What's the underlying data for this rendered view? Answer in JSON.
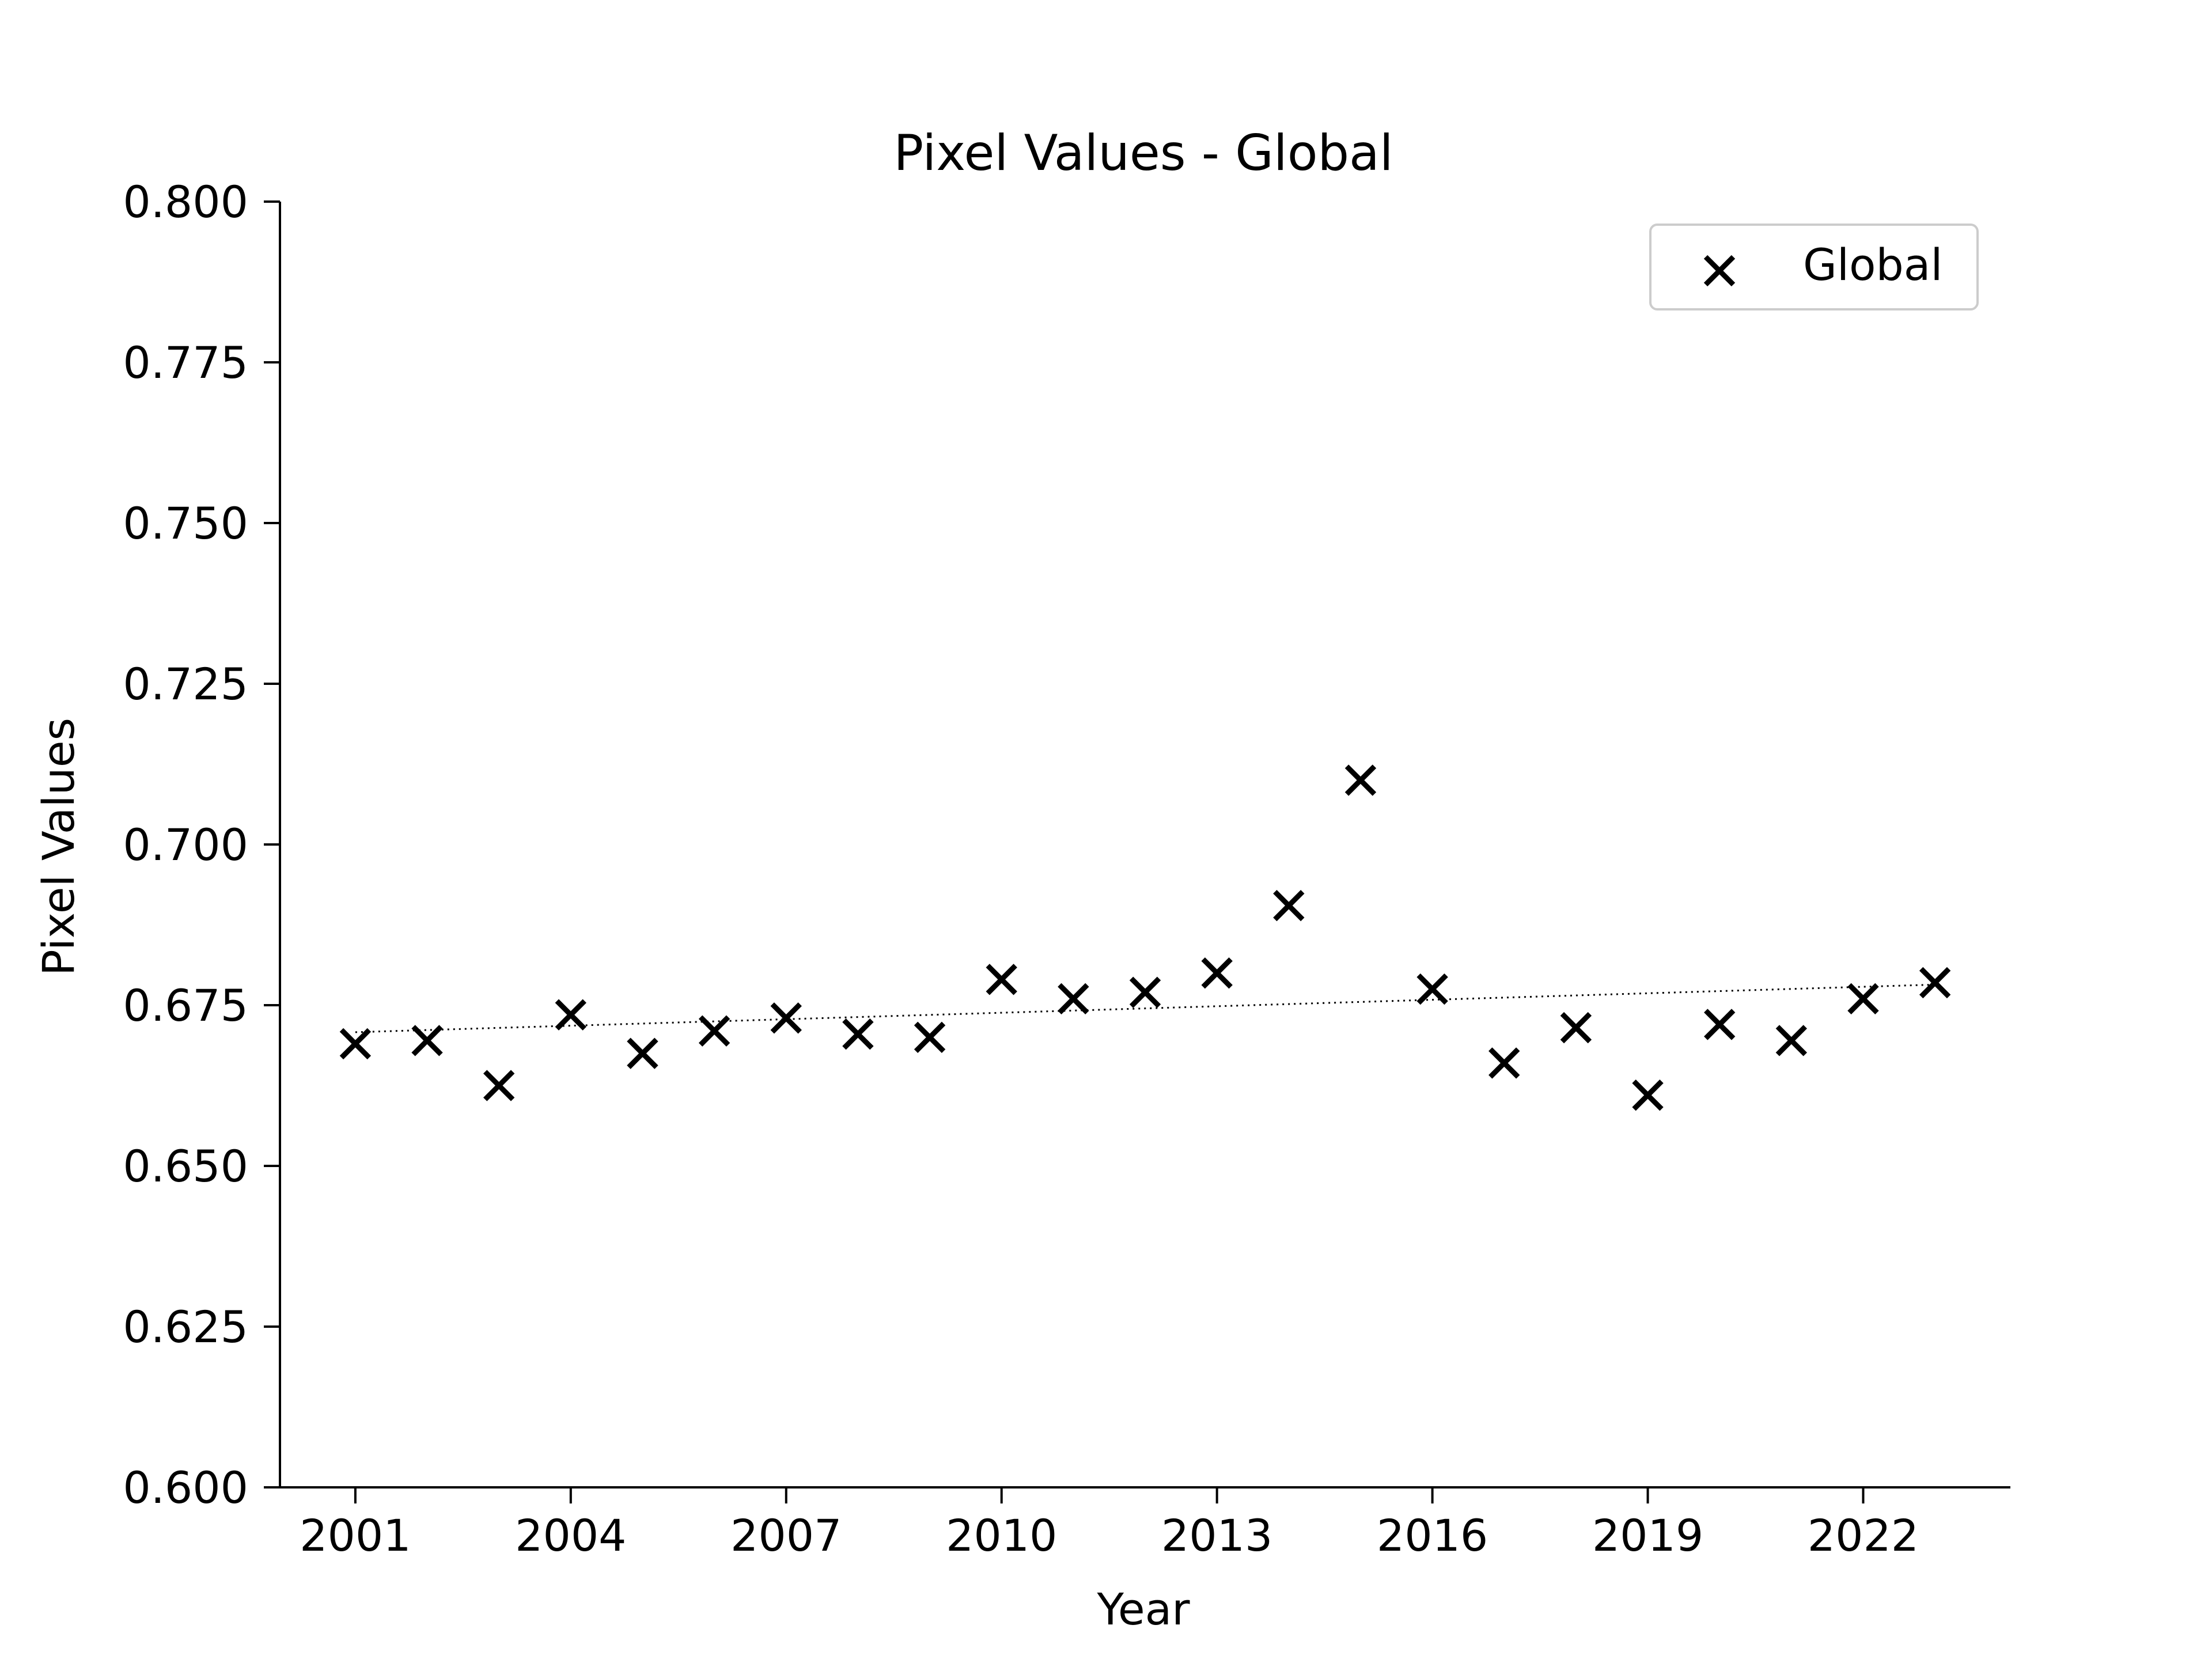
{
  "chart_data": {
    "type": "scatter",
    "title": "Pixel Values - Global",
    "xlabel": "Year",
    "ylabel": "Pixel Values",
    "xlim": [
      1999.95,
      2024.05
    ],
    "ylim": [
      0.6,
      0.8
    ],
    "xticks": [
      2001,
      2004,
      2007,
      2010,
      2013,
      2016,
      2019,
      2022
    ],
    "xtick_labels": [
      "2001",
      "2004",
      "2007",
      "2010",
      "2013",
      "2016",
      "2019",
      "2022"
    ],
    "yticks": [
      0.6,
      0.625,
      0.65,
      0.675,
      0.7,
      0.725,
      0.75,
      0.775,
      0.8
    ],
    "ytick_labels": [
      "0.600",
      "0.625",
      "0.650",
      "0.675",
      "0.700",
      "0.725",
      "0.750",
      "0.775",
      "0.800"
    ],
    "grid": false,
    "legend_position": "top-right",
    "series": [
      {
        "name": "Global",
        "marker": "x",
        "color": "#000000",
        "x": [
          2001,
          2002,
          2003,
          2004,
          2005,
          2006,
          2007,
          2008,
          2009,
          2010,
          2011,
          2012,
          2013,
          2014,
          2015,
          2016,
          2017,
          2018,
          2019,
          2020,
          2021,
          2022,
          2023
        ],
        "y": [
          0.669,
          0.6695,
          0.6625,
          0.6735,
          0.6675,
          0.671,
          0.673,
          0.6705,
          0.67,
          0.679,
          0.676,
          0.677,
          0.68,
          0.6905,
          0.71,
          0.6775,
          0.666,
          0.6715,
          0.661,
          0.672,
          0.6695,
          0.676,
          0.6785
        ]
      }
    ],
    "trendline": {
      "style": "dotted",
      "color": "#000000",
      "x": [
        2001,
        2023
      ],
      "y": [
        0.6708,
        0.6782
      ]
    }
  }
}
